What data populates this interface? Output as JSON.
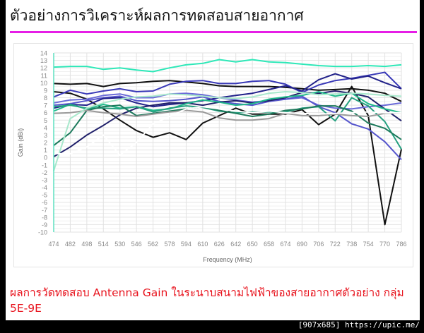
{
  "slide": {
    "title": "ตัวอย่างการวิเคราะห์ผลการทดสอบสายอากาศ",
    "caption": "ผลการวัดทดสอบ Antenna Gain ในระนาบสนามไฟฟ้าของสายอากาศตัวอย่าง กลุ่ม 5E-9E",
    "rule_color": "#e61ee6",
    "caption_color": "#e8141e"
  },
  "footer": {
    "text": "[907x685] https://upic.me/"
  },
  "chart_data": {
    "type": "line",
    "title": "",
    "xlabel": "Frequency (MHz)",
    "ylabel": "Gain (dBi)",
    "ylim": [
      -10,
      14
    ],
    "yticks": [
      14,
      13,
      12,
      11,
      10,
      9,
      8,
      7,
      6,
      5,
      4,
      3,
      2,
      1,
      0,
      -1,
      -2,
      -3,
      -4,
      -5,
      -6,
      -7,
      -8,
      -9,
      -10
    ],
    "grid": true,
    "legend": "none",
    "categories": [
      "474",
      "482",
      "498",
      "514",
      "530",
      "546",
      "562",
      "578",
      "594",
      "610",
      "626",
      "642",
      "650",
      "658",
      "674",
      "690",
      "706",
      "722",
      "738",
      "754",
      "770",
      "786"
    ],
    "series": [
      {
        "name": "s1",
        "color": "#2ee8b8",
        "values": [
          12.1,
          12.2,
          12.2,
          11.8,
          12.0,
          11.7,
          11.5,
          12.0,
          12.4,
          12.6,
          13.1,
          12.8,
          13.1,
          12.8,
          12.7,
          12.5,
          12.3,
          12.2,
          12.2,
          12.3,
          12.2,
          12.4
        ]
      },
      {
        "name": "s2",
        "color": "#111111",
        "values": [
          9.9,
          9.8,
          9.9,
          9.5,
          9.9,
          10.0,
          10.2,
          10.3,
          10.1,
          9.9,
          9.6,
          9.5,
          9.5,
          9.5,
          9.4,
          9.2,
          9.0,
          9.1,
          9.2,
          9.0,
          8.6,
          7.5
        ]
      },
      {
        "name": "s3",
        "color": "#111111",
        "values": [
          8.8,
          8.6,
          7.8,
          6.5,
          5.0,
          3.6,
          2.7,
          3.3,
          2.4,
          4.6,
          5.6,
          6.6,
          5.8,
          5.8,
          5.8,
          6.4,
          4.4,
          5.8,
          9.5,
          5.6,
          -9.0,
          1.1
        ]
      },
      {
        "name": "s4",
        "color": "#3a3ab8",
        "values": [
          8.1,
          9.0,
          8.5,
          8.9,
          9.2,
          8.8,
          8.9,
          9.8,
          10.2,
          10.3,
          9.9,
          9.9,
          10.2,
          10.3,
          9.8,
          8.7,
          9.7,
          10.3,
          10.6,
          11.0,
          11.4,
          9.2
        ]
      },
      {
        "name": "s5",
        "color": "#6a6ad8",
        "values": [
          7.3,
          7.7,
          7.8,
          8.3,
          8.5,
          8.0,
          8.0,
          8.5,
          8.6,
          8.4,
          8.0,
          7.7,
          7.4,
          7.6,
          7.8,
          8.0,
          7.0,
          6.6,
          6.5,
          6.8,
          7.0,
          7.3
        ]
      },
      {
        "name": "s6",
        "color": "#5555cc",
        "values": [
          7.0,
          7.2,
          7.6,
          8.0,
          8.2,
          7.6,
          7.5,
          7.6,
          7.8,
          8.1,
          7.5,
          7.2,
          7.0,
          7.5,
          7.8,
          8.2,
          6.8,
          6.0,
          4.5,
          3.8,
          2.1,
          -0.3
        ]
      },
      {
        "name": "s7",
        "color": "#22228a",
        "values": [
          6.6,
          7.1,
          7.0,
          7.9,
          8.0,
          7.3,
          6.8,
          7.1,
          7.3,
          7.6,
          8.0,
          8.3,
          8.6,
          9.1,
          9.6,
          8.9,
          10.4,
          11.2,
          10.5,
          10.9,
          10.0,
          9.2
        ]
      },
      {
        "name": "s8",
        "color": "#20206a",
        "values": [
          0.1,
          1.4,
          3.0,
          4.3,
          5.7,
          6.6,
          7.0,
          7.3,
          7.3,
          7.0,
          7.4,
          7.6,
          7.3,
          7.6,
          8.0,
          8.7,
          8.6,
          8.9,
          8.6,
          8.1,
          6.5,
          4.9
        ]
      },
      {
        "name": "s9",
        "color": "#1fb88a",
        "values": [
          6.2,
          7.1,
          6.5,
          7.1,
          6.6,
          6.8,
          6.3,
          6.5,
          7.2,
          7.7,
          7.4,
          7.0,
          7.2,
          7.8,
          8.1,
          8.3,
          8.8,
          8.2,
          8.6,
          7.2,
          6.5,
          6.0
        ]
      },
      {
        "name": "s10",
        "color": "#26a080",
        "values": [
          6.8,
          7.0,
          6.6,
          6.6,
          6.5,
          6.8,
          6.1,
          6.6,
          6.9,
          6.7,
          6.2,
          6.0,
          6.1,
          6.1,
          6.1,
          6.6,
          6.8,
          4.9,
          8.0,
          6.9,
          4.8,
          1.1
        ]
      },
      {
        "name": "s11",
        "color": "#1d7a5c",
        "values": [
          1.6,
          3.3,
          6.3,
          6.8,
          7.0,
          5.6,
          5.9,
          6.2,
          6.5,
          6.8,
          6.3,
          5.9,
          5.5,
          5.8,
          6.3,
          6.5,
          6.9,
          6.9,
          6.2,
          4.6,
          3.9,
          2.4
        ]
      },
      {
        "name": "s12",
        "color": "#9a9a9a",
        "values": [
          5.9,
          6.0,
          6.3,
          6.0,
          5.8,
          5.5,
          5.8,
          6.1,
          6.3,
          6.1,
          5.3,
          5.0,
          5.0,
          5.2,
          5.9,
          5.6,
          5.6,
          5.8,
          5.6,
          5.5,
          5.9,
          6.0
        ]
      },
      {
        "name": "s13",
        "color": "#a8e8cc",
        "values": [
          -1.8,
          5.2,
          6.6,
          7.3,
          7.8,
          8.1,
          8.2,
          8.5,
          8.4,
          8.2,
          8.0,
          7.9,
          8.1,
          8.6,
          8.8,
          8.7,
          8.4,
          8.5,
          8.6,
          8.5,
          8.3,
          8.2
        ]
      },
      {
        "name": "s14",
        "color": "#ffffff",
        "values": [
          0.5,
          0.5,
          1.4,
          3.0,
          0.3,
          2.0,
          4.5,
          5.5,
          6.5,
          6.8,
          6.5,
          6.2,
          6.0,
          6.2,
          6.0,
          5.9,
          5.8,
          5.9,
          6.0,
          6.1,
          6.0,
          6.0
        ]
      }
    ]
  }
}
